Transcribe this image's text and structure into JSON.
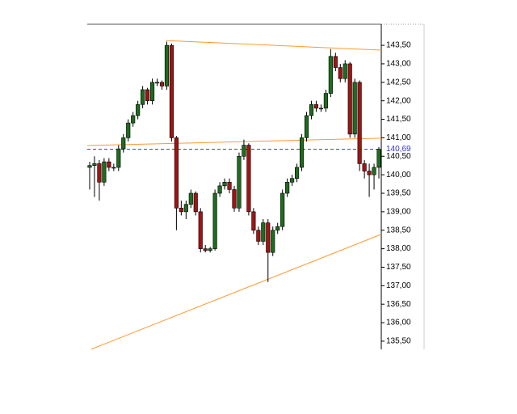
{
  "chart_data": {
    "type": "candlestick",
    "open": [
      140.2,
      140.25,
      140.3,
      139.8,
      140.35,
      140.2,
      140.2,
      140.7,
      141.0,
      141.4,
      141.6,
      141.9,
      142.3,
      142.0,
      142.5,
      142.5,
      142.4,
      143.5,
      141.0,
      139.1,
      139.0,
      139.2,
      139.5,
      139.0,
      138.0,
      137.95,
      138.0,
      139.5,
      139.7,
      139.8,
      139.6,
      139.1,
      140.5,
      140.8,
      139.0,
      138.5,
      138.2,
      138.7,
      137.9,
      138.5,
      138.6,
      139.5,
      139.8,
      139.9,
      140.2,
      141.0,
      141.6,
      141.9,
      141.8,
      141.8,
      142.2,
      143.2,
      142.9,
      142.6,
      143.0,
      141.1,
      142.5,
      140.3,
      140.1,
      140.0,
      140.2
    ],
    "high": [
      140.35,
      140.5,
      140.4,
      140.45,
      140.45,
      140.3,
      140.8,
      141.1,
      141.5,
      141.7,
      142.0,
      142.4,
      142.35,
      142.6,
      142.6,
      142.55,
      143.6,
      143.55,
      141.05,
      139.3,
      139.3,
      139.6,
      139.55,
      139.1,
      138.1,
      138.05,
      139.6,
      139.8,
      139.9,
      139.9,
      139.7,
      140.6,
      140.95,
      140.85,
      139.1,
      138.6,
      138.8,
      138.8,
      138.6,
      138.7,
      139.6,
      139.9,
      140.0,
      140.3,
      141.1,
      141.7,
      142.0,
      142.0,
      141.9,
      142.3,
      143.4,
      143.3,
      143.0,
      143.1,
      143.05,
      142.6,
      142.55,
      140.4,
      140.3,
      140.3,
      140.75
    ],
    "low": [
      139.6,
      139.4,
      139.3,
      139.7,
      140.1,
      140.1,
      140.1,
      140.6,
      140.9,
      141.3,
      141.5,
      141.8,
      141.9,
      141.9,
      142.4,
      142.3,
      142.3,
      140.9,
      138.5,
      138.9,
      138.8,
      139.1,
      138.9,
      137.9,
      137.9,
      137.9,
      137.95,
      139.4,
      139.6,
      139.5,
      139.0,
      139.0,
      140.4,
      138.9,
      138.4,
      138.1,
      138.1,
      137.1,
      137.8,
      138.4,
      138.5,
      139.4,
      139.7,
      139.8,
      140.1,
      140.9,
      141.5,
      141.7,
      141.7,
      141.7,
      142.1,
      142.8,
      142.5,
      142.5,
      141.0,
      141.0,
      140.1,
      139.9,
      139.4,
      139.6,
      139.9
    ],
    "close": [
      140.25,
      140.3,
      139.8,
      140.35,
      140.2,
      140.2,
      140.7,
      141.0,
      141.4,
      141.6,
      141.9,
      142.3,
      142.0,
      142.5,
      142.5,
      142.4,
      143.5,
      141.0,
      139.1,
      139.0,
      139.2,
      139.5,
      139.0,
      138.0,
      137.95,
      138.0,
      139.5,
      139.7,
      139.8,
      139.6,
      139.1,
      140.5,
      140.8,
      139.0,
      138.5,
      138.2,
      138.7,
      137.9,
      138.5,
      138.6,
      139.5,
      139.8,
      139.9,
      140.2,
      141.0,
      141.6,
      141.9,
      141.8,
      141.8,
      142.2,
      143.2,
      142.9,
      142.6,
      143.0,
      141.1,
      142.5,
      140.3,
      140.1,
      140.0,
      140.2,
      140.69
    ],
    "up_color": "#1f6b1f",
    "down_color": "#a01414",
    "xlim": [
      -0.5,
      60.5
    ],
    "ylim": [
      135.28,
      144.07
    ],
    "yticks": [
      {
        "value": 135.5,
        "label": "135,50"
      },
      {
        "value": 136,
        "label": "136,00"
      },
      {
        "value": 136.5,
        "label": "136,50"
      },
      {
        "value": 137,
        "label": "137,00"
      },
      {
        "value": 137.5,
        "label": "137,50"
      },
      {
        "value": 138,
        "label": "138,00"
      },
      {
        "value": 138.5,
        "label": "138,50"
      },
      {
        "value": 139,
        "label": "139,00"
      },
      {
        "value": 139.5,
        "label": "139,50"
      },
      {
        "value": 140,
        "label": "140,00"
      },
      {
        "value": 140.5,
        "label": "140,50"
      },
      {
        "value": 141,
        "label": "141,00"
      },
      {
        "value": 141.5,
        "label": "141,50"
      },
      {
        "value": 142,
        "label": "142,00"
      },
      {
        "value": 142.5,
        "label": "142,50"
      },
      {
        "value": 143,
        "label": "143,00"
      },
      {
        "value": 143.5,
        "label": "143,50"
      }
    ],
    "last": {
      "value": 140.69,
      "label": "140,69",
      "color": "#3333cc"
    },
    "trendlines": [
      {
        "x": [
          15.8,
          60.5
        ],
        "y": [
          143.63,
          143.37
        ],
        "color": "#ff9933"
      },
      {
        "x": [
          -0.5,
          60.5
        ],
        "y": [
          140.79,
          140.99
        ],
        "color": "#ff9933"
      },
      {
        "x": [
          0.3,
          60.5
        ],
        "y": [
          135.28,
          138.39
        ],
        "color": "#ff9933"
      }
    ]
  }
}
